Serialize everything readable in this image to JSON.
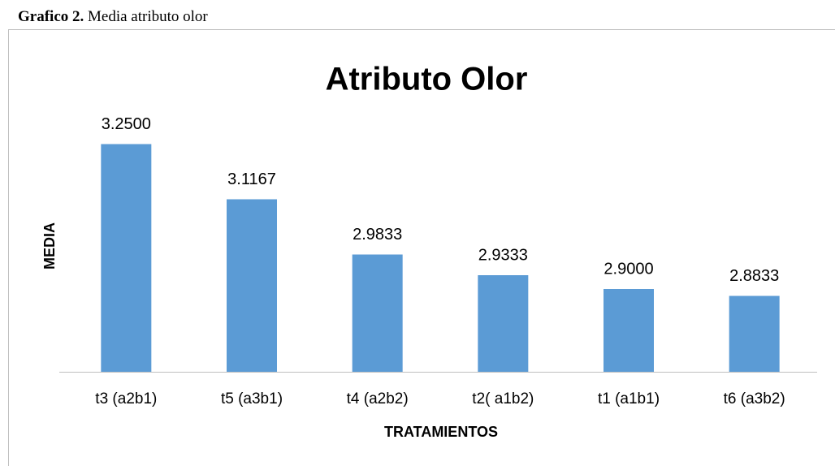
{
  "caption": {
    "label": "Grafico 2.",
    "text": "Media atributo olor"
  },
  "chart_data": {
    "type": "bar",
    "title": "Atributo Olor",
    "x_label": "TRATAMIENTOS",
    "y_label": "MEDIA",
    "categories": [
      "t3  (a2b1)",
      "t5 (a3b1)",
      "t4 (a2b2)",
      "t2( a1b2)",
      "t1  (a1b1)",
      "t6  (a3b2)"
    ],
    "values": [
      3.25,
      3.1167,
      2.9833,
      2.9333,
      2.9,
      2.8833
    ],
    "value_labels": [
      "3.2500",
      "3.1167",
      "2.9833",
      "2.9333",
      "2.9000",
      "2.8833"
    ],
    "color": "#5b9bd5",
    "ylim": [
      2.7,
      3.3
    ],
    "yticks": [],
    "grid": false
  }
}
